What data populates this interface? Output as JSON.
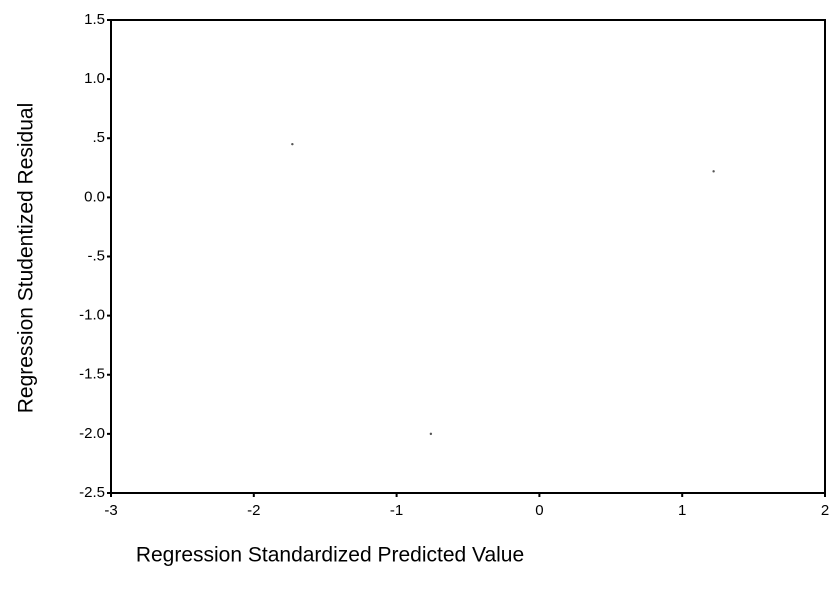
{
  "chart_data": {
    "type": "scatter",
    "x_label": "Regression Standardized Predicted Value",
    "y_label": "Regression Studentized Residual",
    "x": [
      -1.73,
      1.22,
      -0.76
    ],
    "values": [
      0.45,
      0.22,
      -2.0
    ],
    "color": "#555555",
    "xlim": [
      -3,
      2
    ],
    "ylim": [
      -2.5,
      1.5
    ],
    "xticks": [
      -3,
      -2,
      -1,
      0,
      1,
      2
    ],
    "yticks": [
      1.5,
      {
        "value": 1.0,
        "label": "1.0"
      },
      {
        "value": 0.5,
        "label": ".5"
      },
      {
        "value": 0.0,
        "label": "0.0"
      },
      {
        "value": -0.5,
        "label": "-.5"
      },
      {
        "value": -1.0,
        "label": "-1.0"
      },
      -1.5,
      {
        "value": -2.0,
        "label": "-2.0"
      },
      -2.5
    ]
  }
}
